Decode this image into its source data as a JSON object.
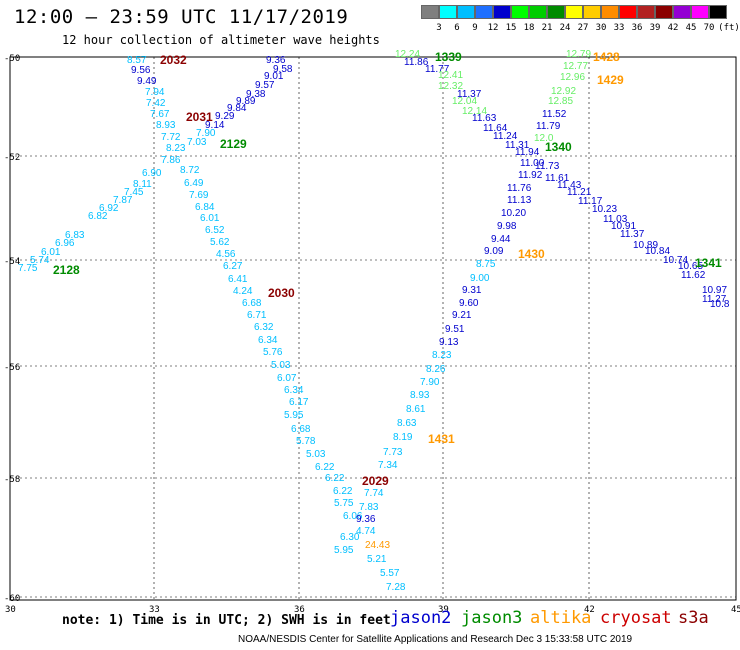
{
  "header": {
    "title": "12:00 – 23:59 UTC 11/17/2019",
    "subtitle": "12 hour collection of altimeter wave heights"
  },
  "colorbar": {
    "unit": "(ft)",
    "labels": [
      "3",
      "6",
      "9",
      "12",
      "15",
      "18",
      "21",
      "24",
      "27",
      "30",
      "33",
      "36",
      "39",
      "42",
      "45",
      "70"
    ],
    "colors": [
      "#7f7f7f",
      "#00ffff",
      "#00bfff",
      "#1f6fff",
      "#0000cd",
      "#00ff00",
      "#00cd00",
      "#008b00",
      "#ffff00",
      "#ffcc00",
      "#ff8c00",
      "#ff0000",
      "#b22222",
      "#8b0000",
      "#9400d3",
      "#ff00ff",
      "#000000"
    ]
  },
  "axes": {
    "lat_labels": [
      "-50",
      "-52",
      "-54",
      "-56",
      "-58",
      "-60"
    ],
    "lon_labels": [
      "30",
      "33",
      "36",
      "39",
      "42",
      "45"
    ]
  },
  "colors": {
    "jason2": "#0000cd",
    "jason3": "#008b00",
    "altika": "#ff9900",
    "cryosat": "#cc0000",
    "s3a": "#8b0000",
    "light_blue": "#00bfff",
    "light_green": "#66ee66"
  },
  "passes": [
    {
      "label": "2032",
      "color": "s3a"
    },
    {
      "label": "2031",
      "color": "s3a"
    },
    {
      "label": "2129",
      "color": "jason3"
    },
    {
      "label": "2128",
      "color": "jason3"
    },
    {
      "label": "2030",
      "color": "s3a"
    },
    {
      "label": "2029",
      "color": "s3a"
    },
    {
      "label": "1339",
      "color": "jason3"
    },
    {
      "label": "1428",
      "color": "altika"
    },
    {
      "label": "1429",
      "color": "altika"
    },
    {
      "label": "1340",
      "color": "jason3"
    },
    {
      "label": "1430",
      "color": "altika"
    },
    {
      "label": "1341",
      "color": "jason3"
    },
    {
      "label": "1431",
      "color": "altika"
    }
  ],
  "observations": [
    {
      "v": "8.57",
      "c": "light_blue"
    },
    {
      "v": "9.56",
      "c": "jason2"
    },
    {
      "v": "9.49",
      "c": "jason2"
    },
    {
      "v": "7.94",
      "c": "light_blue"
    },
    {
      "v": "7.42",
      "c": "light_blue"
    },
    {
      "v": "7.67",
      "c": "light_blue"
    },
    {
      "v": "8.93",
      "c": "light_blue"
    },
    {
      "v": "7.72",
      "c": "light_blue"
    },
    {
      "v": "8.23",
      "c": "light_blue"
    },
    {
      "v": "7.86",
      "c": "light_blue"
    },
    {
      "v": "6.90",
      "c": "light_blue"
    },
    {
      "v": "8.11",
      "c": "light_blue"
    },
    {
      "v": "7.45",
      "c": "light_blue"
    },
    {
      "v": "7.87",
      "c": "light_blue"
    },
    {
      "v": "6.92",
      "c": "light_blue"
    },
    {
      "v": "6.82",
      "c": "light_blue"
    },
    {
      "v": "6.83",
      "c": "light_blue"
    },
    {
      "v": "6.96",
      "c": "light_blue"
    },
    {
      "v": "6.01",
      "c": "light_blue"
    },
    {
      "v": "5.74",
      "c": "light_blue"
    },
    {
      "v": "7.75",
      "c": "light_blue"
    },
    {
      "v": "9.36",
      "c": "jason2"
    },
    {
      "v": "9.58",
      "c": "jason2"
    },
    {
      "v": "9.01",
      "c": "jason2"
    },
    {
      "v": "9.57",
      "c": "jason2"
    },
    {
      "v": "9.38",
      "c": "jason2"
    },
    {
      "v": "9.89",
      "c": "jason2"
    },
    {
      "v": "9.84",
      "c": "jason2"
    },
    {
      "v": "9.29",
      "c": "jason2"
    },
    {
      "v": "9.14",
      "c": "jason2"
    },
    {
      "v": "7.90",
      "c": "light_blue"
    },
    {
      "v": "7.03",
      "c": "light_blue"
    },
    {
      "v": "8.72",
      "c": "light_blue"
    },
    {
      "v": "6.49",
      "c": "light_blue"
    },
    {
      "v": "7.69",
      "c": "light_blue"
    },
    {
      "v": "6.84",
      "c": "light_blue"
    },
    {
      "v": "6.01",
      "c": "light_blue"
    },
    {
      "v": "6.52",
      "c": "light_blue"
    },
    {
      "v": "5.62",
      "c": "light_blue"
    },
    {
      "v": "4.56",
      "c": "light_blue"
    },
    {
      "v": "6.27",
      "c": "light_blue"
    },
    {
      "v": "6.41",
      "c": "light_blue"
    },
    {
      "v": "4.24",
      "c": "light_blue"
    },
    {
      "v": "6.68",
      "c": "light_blue"
    },
    {
      "v": "6.71",
      "c": "light_blue"
    },
    {
      "v": "6.32",
      "c": "light_blue"
    },
    {
      "v": "6.34",
      "c": "light_blue"
    },
    {
      "v": "5.76",
      "c": "light_blue"
    },
    {
      "v": "5.03",
      "c": "light_blue"
    },
    {
      "v": "6.07",
      "c": "light_blue"
    },
    {
      "v": "6.34",
      "c": "light_blue"
    },
    {
      "v": "6.17",
      "c": "light_blue"
    },
    {
      "v": "5.95",
      "c": "light_blue"
    },
    {
      "v": "6.68",
      "c": "light_blue"
    },
    {
      "v": "5.78",
      "c": "light_blue"
    },
    {
      "v": "5.03",
      "c": "light_blue"
    },
    {
      "v": "6.22",
      "c": "light_blue"
    },
    {
      "v": "6.22",
      "c": "light_blue"
    },
    {
      "v": "6.22",
      "c": "light_blue"
    },
    {
      "v": "5.75",
      "c": "light_blue"
    },
    {
      "v": "6.06",
      "c": "light_blue"
    },
    {
      "v": "6.30",
      "c": "light_blue"
    },
    {
      "v": "5.95",
      "c": "light_blue"
    },
    {
      "v": "7.74",
      "c": "light_blue"
    },
    {
      "v": "7.83",
      "c": "light_blue"
    },
    {
      "v": "9.36",
      "c": "jason2"
    },
    {
      "v": "4.74",
      "c": "light_blue"
    },
    {
      "v": "24.43",
      "c": "altika"
    },
    {
      "v": "5.21",
      "c": "light_blue"
    },
    {
      "v": "5.57",
      "c": "light_blue"
    },
    {
      "v": "7.28",
      "c": "light_blue"
    },
    {
      "v": "7.34",
      "c": "light_blue"
    },
    {
      "v": "7.73",
      "c": "light_blue"
    },
    {
      "v": "8.19",
      "c": "light_blue"
    },
    {
      "v": "8.63",
      "c": "light_blue"
    },
    {
      "v": "8.61",
      "c": "light_blue"
    },
    {
      "v": "8.93",
      "c": "light_blue"
    },
    {
      "v": "7.90",
      "c": "light_blue"
    },
    {
      "v": "8.26",
      "c": "light_blue"
    },
    {
      "v": "8.23",
      "c": "light_blue"
    },
    {
      "v": "9.13",
      "c": "jason2"
    },
    {
      "v": "9.51",
      "c": "jason2"
    },
    {
      "v": "9.21",
      "c": "jason2"
    },
    {
      "v": "9.60",
      "c": "jason2"
    },
    {
      "v": "9.31",
      "c": "jason2"
    },
    {
      "v": "9.00",
      "c": "light_blue"
    },
    {
      "v": "8.75",
      "c": "light_blue"
    },
    {
      "v": "9.09",
      "c": "jason2"
    },
    {
      "v": "9.44",
      "c": "jason2"
    },
    {
      "v": "9.98",
      "c": "jason2"
    },
    {
      "v": "10.20",
      "c": "jason2"
    },
    {
      "v": "11.13",
      "c": "jason2"
    },
    {
      "v": "11.76",
      "c": "jason2"
    },
    {
      "v": "11.92",
      "c": "jason2"
    },
    {
      "v": "11.00",
      "c": "jason2"
    },
    {
      "v": "11.31",
      "c": "jason2"
    },
    {
      "v": "11.24",
      "c": "jason2"
    },
    {
      "v": "11.64",
      "c": "jason2"
    },
    {
      "v": "11.63",
      "c": "jason2"
    },
    {
      "v": "11.37",
      "c": "jason2"
    },
    {
      "v": "11.77",
      "c": "jason2"
    },
    {
      "v": "11.86",
      "c": "jason2"
    },
    {
      "v": "12.24",
      "c": "light_green"
    },
    {
      "v": "12.41",
      "c": "light_green"
    },
    {
      "v": "12.32",
      "c": "light_green"
    },
    {
      "v": "12.04",
      "c": "light_green"
    },
    {
      "v": "12.14",
      "c": "light_green"
    },
    {
      "v": "12.79",
      "c": "light_green"
    },
    {
      "v": "12.77",
      "c": "light_green"
    },
    {
      "v": "12.96",
      "c": "light_green"
    },
    {
      "v": "12.92",
      "c": "light_green"
    },
    {
      "v": "12.85",
      "c": "light_green"
    },
    {
      "v": "11.52",
      "c": "jason2"
    },
    {
      "v": "11.79",
      "c": "jason2"
    },
    {
      "v": "12.0",
      "c": "light_green"
    },
    {
      "v": "11.94",
      "c": "jason2"
    },
    {
      "v": "11.73",
      "c": "jason2"
    },
    {
      "v": "11.61",
      "c": "jason2"
    },
    {
      "v": "11.43",
      "c": "jason2"
    },
    {
      "v": "11.21",
      "c": "jason2"
    },
    {
      "v": "11.17",
      "c": "jason2"
    },
    {
      "v": "10.23",
      "c": "jason2"
    },
    {
      "v": "11.03",
      "c": "jason2"
    },
    {
      "v": "10.91",
      "c": "jason2"
    },
    {
      "v": "11.37",
      "c": "jason2"
    },
    {
      "v": "10.89",
      "c": "jason2"
    },
    {
      "v": "10.84",
      "c": "jason2"
    },
    {
      "v": "10.74",
      "c": "jason2"
    },
    {
      "v": "10.65",
      "c": "jason2"
    },
    {
      "v": "11.62",
      "c": "jason2"
    },
    {
      "v": "10.97",
      "c": "jason2"
    },
    {
      "v": "11.27",
      "c": "jason2"
    },
    {
      "v": "10.8",
      "c": "jason2"
    }
  ],
  "footer": {
    "note": "note: 1) Time is in UTC; 2) SWH is in feet",
    "legend": [
      {
        "name": "jason2",
        "color": "jason2"
      },
      {
        "name": "jason3",
        "color": "jason3"
      },
      {
        "name": "altika",
        "color": "altika"
      },
      {
        "name": "cryosat",
        "color": "cryosat"
      },
      {
        "name": "s3a",
        "color": "s3a"
      }
    ],
    "credit": "NOAA/NESDIS Center for Satellite Applications and Research    Dec  3 15:33:58 UTC 2019"
  }
}
